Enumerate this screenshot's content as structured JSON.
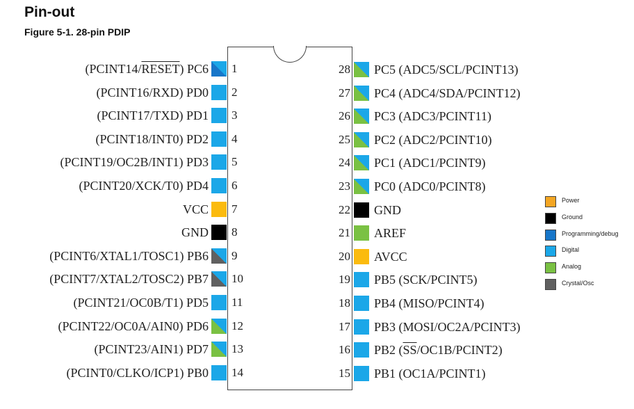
{
  "page": {
    "heading": "Pin-out",
    "figure_caption": "Figure 5-1.  28-pin PDIP"
  },
  "colors": {
    "Power": "#f4a623",
    "Ground": "#000000",
    "Programming/debug": "#1776c9",
    "Digital": "#1ba7e8",
    "Analog": "#7ac143",
    "Crystal/Osc": "#606060",
    "VCC/AVCC": "#fbbb0e"
  },
  "pins": [
    {
      "num": "1",
      "parts": [
        {
          "t": "(PCINT14/"
        },
        {
          "t": "RESET",
          "ov": true
        },
        {
          "t": ") PC6"
        }
      ],
      "fill": [
        "Programming/debug",
        "Digital"
      ]
    },
    {
      "num": "2",
      "parts": [
        {
          "t": "(PCINT16/RXD) PD0"
        }
      ],
      "fill": [
        "Digital"
      ]
    },
    {
      "num": "3",
      "parts": [
        {
          "t": "(PCINT17/TXD) PD1"
        }
      ],
      "fill": [
        "Digital"
      ]
    },
    {
      "num": "4",
      "parts": [
        {
          "t": "(PCINT18/INT0) PD2"
        }
      ],
      "fill": [
        "Digital"
      ]
    },
    {
      "num": "5",
      "parts": [
        {
          "t": "(PCINT19/OC2B/INT1) PD3"
        }
      ],
      "fill": [
        "Digital"
      ]
    },
    {
      "num": "6",
      "parts": [
        {
          "t": "(PCINT20/XCK/T0) PD4"
        }
      ],
      "fill": [
        "Digital"
      ]
    },
    {
      "num": "7",
      "parts": [
        {
          "t": "VCC"
        }
      ],
      "fill": [
        "VCC/AVCC"
      ]
    },
    {
      "num": "8",
      "parts": [
        {
          "t": "GND"
        }
      ],
      "fill": [
        "Ground"
      ]
    },
    {
      "num": "9",
      "parts": [
        {
          "t": "(PCINT6/XTAL1/TOSC1) PB6"
        }
      ],
      "fill": [
        "Crystal/Osc",
        "Digital"
      ]
    },
    {
      "num": "10",
      "parts": [
        {
          "t": "(PCINT7/XTAL2/TOSC2) PB7"
        }
      ],
      "fill": [
        "Crystal/Osc",
        "Digital"
      ]
    },
    {
      "num": "11",
      "parts": [
        {
          "t": "(PCINT21/OC0B/T1) PD5"
        }
      ],
      "fill": [
        "Digital"
      ]
    },
    {
      "num": "12",
      "parts": [
        {
          "t": "(PCINT22/OC0A/AIN0) PD6"
        }
      ],
      "fill": [
        "Analog",
        "Digital"
      ]
    },
    {
      "num": "13",
      "parts": [
        {
          "t": "(PCINT23/AIN1) PD7"
        }
      ],
      "fill": [
        "Analog",
        "Digital"
      ]
    },
    {
      "num": "14",
      "parts": [
        {
          "t": "(PCINT0/CLKO/ICP1) PB0"
        }
      ],
      "fill": [
        "Digital"
      ]
    },
    {
      "num": "15",
      "parts": [
        {
          "t": "PB1 (OC1A/PCINT1)"
        }
      ],
      "fill": [
        "Digital"
      ]
    },
    {
      "num": "16",
      "parts": [
        {
          "t": "PB2 ("
        },
        {
          "t": "SS",
          "ov": true
        },
        {
          "t": "/OC1B/PCINT2)"
        }
      ],
      "fill": [
        "Digital"
      ]
    },
    {
      "num": "17",
      "parts": [
        {
          "t": "PB3 (MOSI/OC2A/PCINT3)"
        }
      ],
      "fill": [
        "Digital"
      ]
    },
    {
      "num": "18",
      "parts": [
        {
          "t": "PB4 (MISO/PCINT4)"
        }
      ],
      "fill": [
        "Digital"
      ]
    },
    {
      "num": "19",
      "parts": [
        {
          "t": "PB5 (SCK/PCINT5)"
        }
      ],
      "fill": [
        "Digital"
      ]
    },
    {
      "num": "20",
      "parts": [
        {
          "t": "AVCC"
        }
      ],
      "fill": [
        "VCC/AVCC"
      ]
    },
    {
      "num": "21",
      "parts": [
        {
          "t": "AREF"
        }
      ],
      "fill": [
        "Analog"
      ]
    },
    {
      "num": "22",
      "parts": [
        {
          "t": "GND"
        }
      ],
      "fill": [
        "Ground"
      ]
    },
    {
      "num": "23",
      "parts": [
        {
          "t": "PC0 (ADC0/PCINT8)"
        }
      ],
      "fill": [
        "Analog",
        "Digital"
      ]
    },
    {
      "num": "24",
      "parts": [
        {
          "t": "PC1 (ADC1/PCINT9)"
        }
      ],
      "fill": [
        "Analog",
        "Digital"
      ]
    },
    {
      "num": "25",
      "parts": [
        {
          "t": "PC2 (ADC2/PCINT10)"
        }
      ],
      "fill": [
        "Analog",
        "Digital"
      ]
    },
    {
      "num": "26",
      "parts": [
        {
          "t": "PC3 (ADC3/PCINT11)"
        }
      ],
      "fill": [
        "Analog",
        "Digital"
      ]
    },
    {
      "num": "27",
      "parts": [
        {
          "t": "PC4 (ADC4/SDA/PCINT12)"
        }
      ],
      "fill": [
        "Analog",
        "Digital"
      ]
    },
    {
      "num": "28",
      "parts": [
        {
          "t": "PC5 (ADC5/SCL/PCINT13)"
        }
      ],
      "fill": [
        "Analog",
        "Digital"
      ]
    }
  ],
  "legend": [
    {
      "label": "Power",
      "color": "Power"
    },
    {
      "label": "Ground",
      "color": "Ground"
    },
    {
      "label": "Programming/debug",
      "color": "Programming/debug"
    },
    {
      "label": "Digital",
      "color": "Digital"
    },
    {
      "label": "Analog",
      "color": "Analog"
    },
    {
      "label": "Crystal/Osc",
      "color": "Crystal/Osc"
    }
  ]
}
